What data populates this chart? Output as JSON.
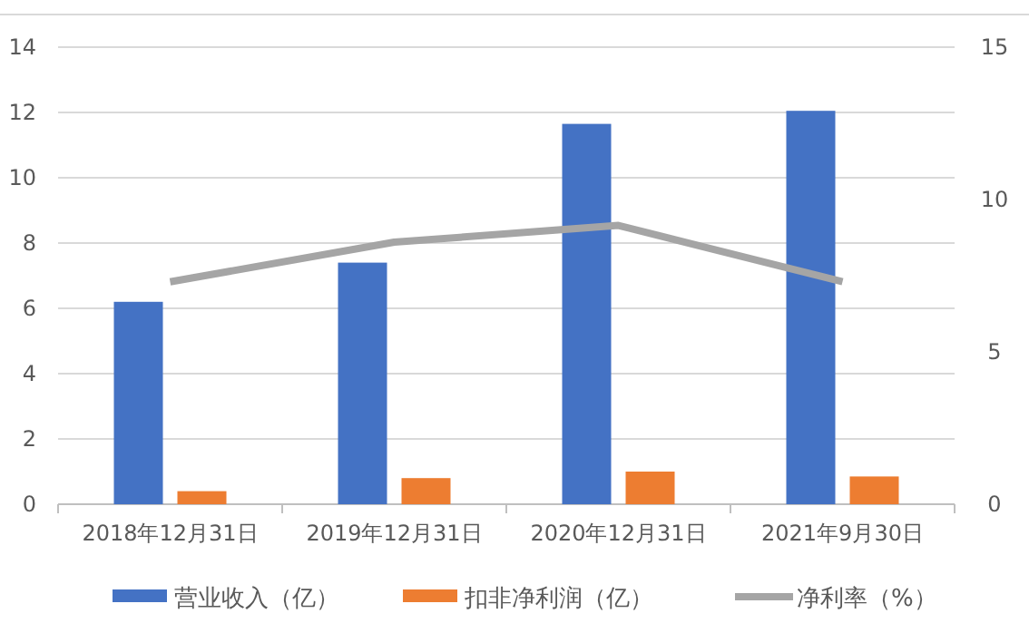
{
  "chart_data": {
    "type": "bar",
    "categories": [
      "2018年12月31日",
      "2019年12月31日",
      "2020年12月31日",
      "2021年9月30日"
    ],
    "series": [
      {
        "name": "营业收入（亿）",
        "color": "#4472c4",
        "values": [
          6.2,
          7.4,
          11.65,
          12.05
        ]
      },
      {
        "name": "扣非净利润（亿）",
        "color": "#ed7d31",
        "values": [
          0.4,
          0.8,
          1.0,
          0.85
        ]
      },
      {
        "name": "净利率（%）",
        "color": "#a5a5a5",
        "type": "line",
        "axis": "y2",
        "values": [
          7.3,
          8.6,
          9.15,
          7.3
        ]
      }
    ],
    "ylim": [
      0,
      14
    ],
    "yticks": [
      0,
      2,
      4,
      6,
      8,
      10,
      12,
      14
    ],
    "y2lim": [
      0,
      15
    ],
    "y2ticks": [
      0,
      5,
      10,
      15
    ],
    "grid": "y",
    "legend": "bottom",
    "marker": "none"
  }
}
